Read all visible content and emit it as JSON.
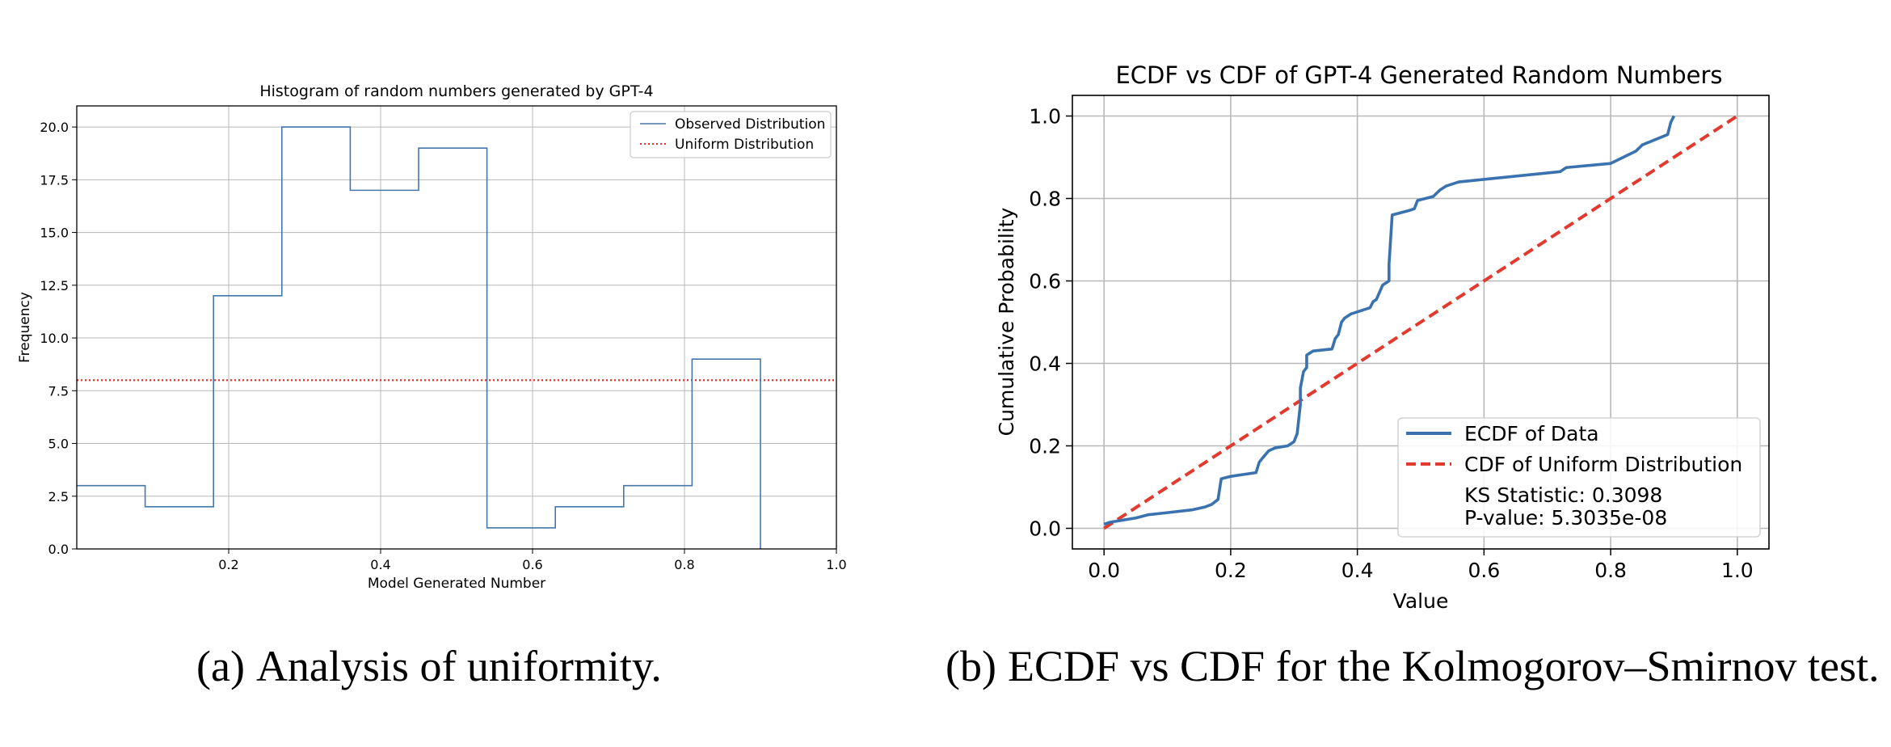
{
  "colors": {
    "observed": "#4477aa",
    "uniform_hist": "#e8302a",
    "ecdf": "#3a72b0",
    "cdf": "#e23a2e",
    "grid": "#b8b8b8",
    "axis": "#000000"
  },
  "chart_data": [
    {
      "type": "line",
      "step": true,
      "title": "Histogram of random numbers generated by GPT-4",
      "xlabel": "Model Generated Number",
      "ylabel": "Frequency",
      "xlim": [
        0.0,
        1.0
      ],
      "ylim": [
        0,
        21
      ],
      "xticks": [
        0.2,
        0.4,
        0.6,
        0.8,
        1.0
      ],
      "xtick_labels": [
        "0.2",
        "0.4",
        "0.6",
        "0.8",
        "1.0"
      ],
      "yticks": [
        0,
        2.5,
        5,
        7.5,
        10,
        12.5,
        15,
        17.5,
        20
      ],
      "ytick_labels": [
        "0.0",
        "2.5",
        "5.0",
        "7.5",
        "10.0",
        "12.5",
        "15.0",
        "17.5",
        "20.0"
      ],
      "bin_edges": [
        0.0,
        0.09,
        0.18,
        0.27,
        0.36,
        0.45,
        0.54,
        0.63,
        0.72,
        0.81,
        0.9
      ],
      "series": [
        {
          "name": "Observed Distribution",
          "style": "solid",
          "values": [
            3,
            2,
            12,
            20,
            17,
            19,
            1,
            2,
            3,
            9
          ]
        },
        {
          "name": "Uniform Distribution",
          "style": "dotted",
          "y": 8
        }
      ],
      "legend": "top-right",
      "grid": true
    },
    {
      "type": "line",
      "title": "ECDF vs CDF of GPT-4 Generated Random Numbers",
      "xlabel": "Value",
      "ylabel": "Cumulative Probability",
      "xlim": [
        -0.05,
        1.05
      ],
      "ylim": [
        -0.05,
        1.05
      ],
      "xticks": [
        0.0,
        0.2,
        0.4,
        0.6,
        0.8,
        1.0
      ],
      "xtick_labels": [
        "0.0",
        "0.2",
        "0.4",
        "0.6",
        "0.8",
        "1.0"
      ],
      "yticks": [
        0.0,
        0.2,
        0.4,
        0.6,
        0.8,
        1.0
      ],
      "ytick_labels": [
        "0.0",
        "0.2",
        "0.4",
        "0.6",
        "0.8",
        "1.0"
      ],
      "series": [
        {
          "name": "ECDF of Data",
          "style": "solid",
          "x": [
            0.0,
            0.01,
            0.03,
            0.05,
            0.07,
            0.1,
            0.14,
            0.16,
            0.17,
            0.18,
            0.185,
            0.2,
            0.24,
            0.245,
            0.25,
            0.26,
            0.27,
            0.29,
            0.3,
            0.305,
            0.31,
            0.31,
            0.315,
            0.32,
            0.32,
            0.325,
            0.33,
            0.36,
            0.365,
            0.37,
            0.375,
            0.38,
            0.39,
            0.41,
            0.42,
            0.425,
            0.43,
            0.44,
            0.45,
            0.45,
            0.455,
            0.48,
            0.49,
            0.495,
            0.52,
            0.53,
            0.54,
            0.56,
            0.72,
            0.73,
            0.8,
            0.82,
            0.84,
            0.85,
            0.89,
            0.895,
            0.9
          ],
          "y": [
            0.01,
            0.015,
            0.02,
            0.025,
            0.033,
            0.038,
            0.045,
            0.052,
            0.058,
            0.07,
            0.12,
            0.126,
            0.135,
            0.16,
            0.17,
            0.188,
            0.195,
            0.2,
            0.21,
            0.23,
            0.3,
            0.34,
            0.38,
            0.39,
            0.42,
            0.425,
            0.43,
            0.435,
            0.46,
            0.47,
            0.5,
            0.51,
            0.52,
            0.53,
            0.535,
            0.55,
            0.555,
            0.59,
            0.6,
            0.64,
            0.76,
            0.77,
            0.775,
            0.795,
            0.805,
            0.82,
            0.83,
            0.84,
            0.865,
            0.875,
            0.885,
            0.9,
            0.915,
            0.93,
            0.955,
            0.985,
            1.0
          ]
        },
        {
          "name": "CDF of Uniform Distribution",
          "style": "dashed",
          "x": [
            0.0,
            1.0
          ],
          "y": [
            0.0,
            1.0
          ]
        }
      ],
      "annotations": [
        "KS Statistic: 0.3098",
        "P-value: 5.3035e-08"
      ],
      "legend": "lower-right",
      "grid": true
    }
  ],
  "captions": {
    "a": {
      "label": "(a)",
      "text": "Analysis of uniformity."
    },
    "b": {
      "label": "(b)",
      "text": "ECDF vs CDF for the Kolmogorov–Smirnov test."
    }
  }
}
